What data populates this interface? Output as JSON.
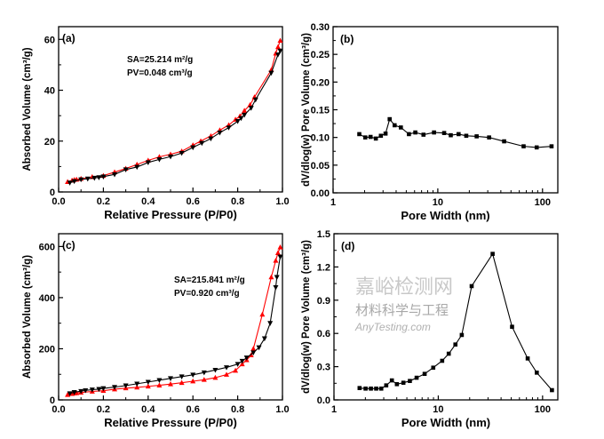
{
  "colors": {
    "adsorption": "#ff0000",
    "desorption": "#000000",
    "axis": "#000000"
  },
  "chart_data": [
    {
      "panel": "(a)",
      "type": "line",
      "xlabel": "Relative Pressure (P/P0)",
      "ylabel": "Absorbed Volume (cm³/g)",
      "xlim": [
        0,
        1.0
      ],
      "ylim": [
        0,
        65
      ],
      "xscale": "linear",
      "xticks": [
        0,
        0.2,
        0.4,
        0.6,
        0.8,
        1.0
      ],
      "xtick_labels": [
        "0.0",
        "0.2",
        "0.4",
        "0.6",
        "0.8",
        "1.0"
      ],
      "yticks": [
        0,
        20,
        40,
        60
      ],
      "ytick_labels": [
        "0",
        "20",
        "40",
        "60"
      ],
      "annotations": [
        "SA=25.214 m²/g",
        "PV=0.048 cm³/g"
      ],
      "series": [
        {
          "marker": "triangle-up",
          "color": "#ff0000",
          "x": [
            0.04,
            0.06,
            0.07,
            0.08,
            0.1,
            0.15,
            0.2,
            0.25,
            0.3,
            0.35,
            0.4,
            0.45,
            0.5,
            0.55,
            0.6,
            0.635,
            0.68,
            0.72,
            0.76,
            0.79,
            0.81,
            0.83,
            0.855,
            0.875,
            0.95,
            0.97,
            0.98,
            0.99
          ],
          "y": [
            4,
            4.5,
            4.8,
            4.9,
            5.2,
            5.9,
            6.4,
            7.8,
            9.2,
            10.8,
            12.4,
            13.8,
            14.8,
            16,
            18.4,
            20,
            22,
            24.3,
            26.3,
            28.5,
            29.8,
            32,
            34.2,
            37.3,
            48,
            54.5,
            57,
            59.5
          ]
        },
        {
          "marker": "triangle-down",
          "color": "#000000",
          "x": [
            0.99,
            0.98,
            0.95,
            0.88,
            0.86,
            0.83,
            0.815,
            0.8,
            0.76,
            0.72,
            0.68,
            0.64,
            0.6,
            0.55,
            0.5,
            0.45,
            0.4,
            0.35,
            0.3,
            0.25,
            0.2,
            0.18,
            0.16,
            0.13,
            0.1,
            0.07,
            0.05
          ],
          "y": [
            55.5,
            54,
            46.8,
            36.3,
            33,
            30.3,
            29,
            27.8,
            25.3,
            23.3,
            21,
            19.2,
            17.5,
            15.3,
            13.9,
            12.8,
            11.6,
            9.8,
            8.8,
            6.9,
            6,
            5.7,
            5.5,
            5.2,
            4.9,
            4.2,
            3.6
          ]
        }
      ]
    },
    {
      "panel": "(b)",
      "type": "line",
      "xlabel": "Pore Width (nm)",
      "ylabel": "dV/dlog(w) Pore Volume (cm³/g)",
      "xlim": [
        1,
        140
      ],
      "ylim": [
        0,
        0.3
      ],
      "xscale": "log",
      "xticks": [
        1,
        10,
        100
      ],
      "xtick_labels": [
        "1",
        "10",
        "100"
      ],
      "yticks": [
        0,
        0.05,
        0.1,
        0.15,
        0.2,
        0.25,
        0.3
      ],
      "ytick_labels": [
        "0.00",
        "0.05",
        "0.10",
        "0.15",
        "0.20",
        "0.25",
        "0.30"
      ],
      "annotations": [],
      "series": [
        {
          "marker": "square",
          "color": "#000000",
          "x": [
            1.78,
            2.03,
            2.28,
            2.56,
            2.86,
            3.17,
            3.47,
            3.87,
            4.44,
            5.3,
            6.1,
            7.3,
            9.2,
            11.5,
            13.3,
            15.8,
            18.7,
            23.5,
            30.9,
            43,
            66,
            88,
            122
          ],
          "y": [
            0.106,
            0.1,
            0.101,
            0.098,
            0.103,
            0.107,
            0.133,
            0.122,
            0.118,
            0.106,
            0.109,
            0.105,
            0.109,
            0.108,
            0.104,
            0.106,
            0.103,
            0.102,
            0.1,
            0.093,
            0.084,
            0.082,
            0.084
          ]
        }
      ]
    },
    {
      "panel": "(c)",
      "type": "line",
      "xlabel": "Relative Pressure (P/P0)",
      "ylabel": "Absorbed Volume (cm³/g)",
      "xlim": [
        0,
        1.0
      ],
      "ylim": [
        0,
        650
      ],
      "xscale": "linear",
      "xticks": [
        0,
        0.2,
        0.4,
        0.6,
        0.8,
        1.0
      ],
      "xtick_labels": [
        "0.0",
        "0.2",
        "0.4",
        "0.6",
        "0.8",
        "1.0"
      ],
      "yticks": [
        0,
        200,
        400,
        600
      ],
      "ytick_labels": [
        "0",
        "200",
        "400",
        "600"
      ],
      "annotations": [
        "SA=215.841 m²/g",
        "PV=0.920 cm³/g"
      ],
      "series": [
        {
          "marker": "triangle-up",
          "color": "#ff0000",
          "x": [
            0.04,
            0.06,
            0.07,
            0.08,
            0.1,
            0.15,
            0.2,
            0.25,
            0.3,
            0.35,
            0.4,
            0.45,
            0.5,
            0.55,
            0.6,
            0.65,
            0.7,
            0.75,
            0.79,
            0.82,
            0.84,
            0.86,
            0.87,
            0.91,
            0.95,
            0.97,
            0.98,
            0.99
          ],
          "y": [
            20,
            24,
            26,
            27,
            29,
            33,
            36,
            42,
            46,
            49,
            53,
            57,
            62,
            67,
            73,
            79,
            87,
            99,
            115,
            140,
            156,
            175,
            200,
            334,
            480,
            545,
            575,
            597
          ]
        },
        {
          "marker": "triangle-down",
          "color": "#000000",
          "x": [
            0.99,
            0.975,
            0.97,
            0.945,
            0.92,
            0.895,
            0.87,
            0.84,
            0.82,
            0.8,
            0.75,
            0.7,
            0.65,
            0.6,
            0.55,
            0.5,
            0.45,
            0.4,
            0.35,
            0.3,
            0.25,
            0.2,
            0.18,
            0.15,
            0.12,
            0.1,
            0.07,
            0.05
          ],
          "y": [
            560,
            480,
            440,
            300,
            240,
            205,
            185,
            165,
            152,
            140,
            127,
            117,
            107,
            98,
            91,
            84,
            77,
            70,
            63,
            56,
            50,
            45,
            42,
            40,
            37,
            34,
            30,
            25
          ]
        }
      ]
    },
    {
      "panel": "(d)",
      "type": "line",
      "xlabel": "Pore Width (nm)",
      "ylabel": "dV/dlog(w) Pore Volume (cm³/g)",
      "xlim": [
        1,
        140
      ],
      "ylim": [
        0,
        1.5
      ],
      "xscale": "log",
      "xticks": [
        1,
        10,
        100
      ],
      "xtick_labels": [
        "1",
        "10",
        "100"
      ],
      "yticks": [
        0,
        0.3,
        0.6,
        0.9,
        1.2,
        1.5
      ],
      "ytick_labels": [
        "0.0",
        "0.3",
        "0.6",
        "0.9",
        "1.2",
        "1.5"
      ],
      "annotations": [],
      "series": [
        {
          "marker": "square",
          "color": "#000000",
          "x": [
            1.76,
            2.01,
            2.26,
            2.54,
            2.84,
            3.17,
            3.59,
            4.01,
            4.63,
            5.34,
            6.2,
            7.4,
            8.95,
            10.9,
            12.6,
            14.6,
            16.8,
            20.9,
            33.2,
            51,
            72,
            88,
            123
          ],
          "y": [
            0.107,
            0.102,
            0.102,
            0.102,
            0.102,
            0.131,
            0.176,
            0.142,
            0.155,
            0.171,
            0.2,
            0.235,
            0.291,
            0.353,
            0.417,
            0.5,
            0.586,
            1.027,
            1.318,
            0.66,
            0.374,
            0.246,
            0.088
          ]
        }
      ]
    }
  ],
  "watermark": {
    "site": "嘉峪检测网",
    "account": "材料科学与工程",
    "url": "AnyTesting.com"
  }
}
